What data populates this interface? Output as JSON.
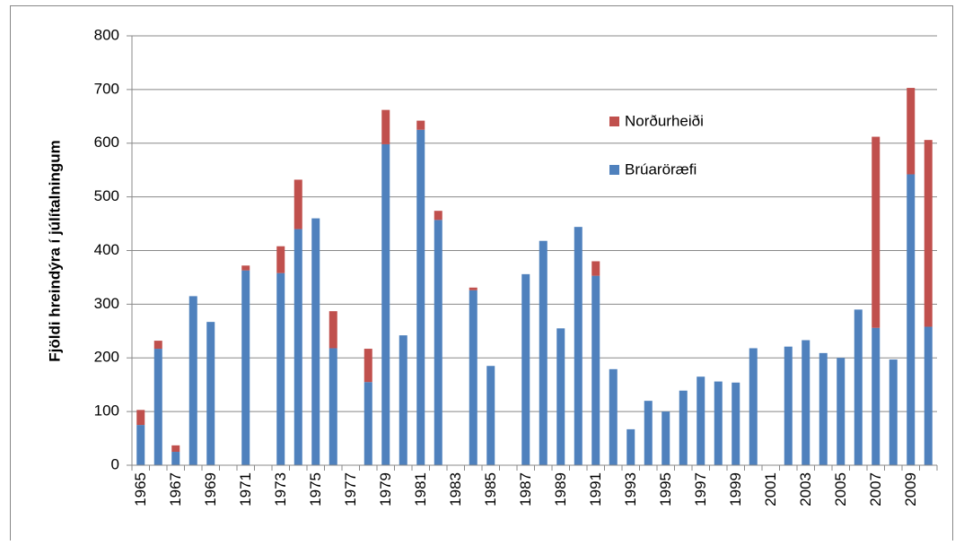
{
  "chart_data": {
    "type": "stacked_bar",
    "y_label": "Fjöldi hreindýra í júlítalningum",
    "categories": [
      "1965",
      null,
      "1967",
      null,
      "1969",
      null,
      "1971",
      null,
      "1973",
      null,
      "1975",
      null,
      "1977",
      null,
      "1979",
      null,
      "1981",
      null,
      "1983",
      null,
      "1985",
      null,
      "1987",
      null,
      "1989",
      null,
      "1991",
      null,
      "1993",
      null,
      "1995",
      null,
      "1997",
      null,
      "1999",
      null,
      "2001",
      null,
      "2003",
      null,
      "2005",
      null,
      "2007",
      null,
      "2009",
      null
    ],
    "series": [
      {
        "name": "Brúaröræfi",
        "color": "#4f81bd",
        "values": [
          75,
          217,
          25,
          315,
          267,
          null,
          363,
          null,
          358,
          440,
          460,
          218,
          null,
          155,
          598,
          242,
          625,
          457,
          null,
          326,
          185,
          null,
          356,
          418,
          255,
          444,
          353,
          179,
          67,
          120,
          100,
          139,
          165,
          156,
          154,
          218,
          null,
          221,
          233,
          209,
          200,
          290,
          256,
          197,
          542,
          258
        ]
      },
      {
        "name": "Norðurheiði",
        "color": "#c0504d",
        "values": [
          28,
          15,
          12,
          null,
          null,
          null,
          9,
          null,
          50,
          92,
          null,
          69,
          null,
          62,
          64,
          null,
          17,
          17,
          null,
          5,
          null,
          null,
          null,
          null,
          null,
          null,
          27,
          null,
          null,
          null,
          null,
          null,
          null,
          null,
          null,
          null,
          null,
          null,
          null,
          null,
          null,
          null,
          356,
          null,
          161,
          348
        ]
      }
    ],
    "ylim": [
      0,
      800
    ],
    "yticks": [
      0,
      100,
      200,
      300,
      400,
      500,
      600,
      700,
      800
    ],
    "grid": true
  }
}
